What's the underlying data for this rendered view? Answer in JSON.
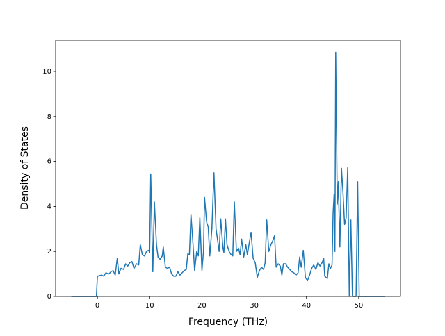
{
  "chart_data": {
    "type": "line",
    "x_label": "Frequency (THz)",
    "y_label": "Density of States",
    "xlim": [
      -8,
      58
    ],
    "ylim": [
      0,
      11.39
    ],
    "xticks": [
      0,
      10,
      20,
      30,
      40,
      50
    ],
    "yticks": [
      0,
      2,
      4,
      6,
      8,
      10
    ],
    "series": [
      {
        "color": "#1f77b4",
        "x": [
          -5,
          -0.2,
          0,
          0.8,
          1.2,
          1.6,
          2.2,
          2.6,
          3.0,
          3.4,
          3.8,
          4.1,
          4.5,
          5.0,
          5.4,
          5.8,
          6.2,
          6.6,
          7.0,
          7.5,
          7.9,
          8.2,
          8.6,
          9.0,
          9.4,
          9.8,
          10.0,
          10.2,
          10.6,
          10.9,
          11.3,
          11.6,
          12.0,
          12.4,
          12.6,
          13.0,
          13.4,
          13.8,
          14.2,
          14.6,
          15.0,
          15.4,
          15.8,
          16.2,
          16.6,
          17.0,
          17.3,
          17.6,
          17.9,
          18.3,
          18.6,
          19.0,
          19.3,
          19.6,
          20.0,
          20.3,
          20.5,
          20.9,
          21.2,
          21.5,
          21.9,
          22.3,
          22.7,
          23.0,
          23.3,
          23.6,
          24.0,
          24.2,
          24.5,
          24.8,
          25.2,
          25.6,
          25.9,
          26.2,
          26.6,
          27.0,
          27.3,
          27.6,
          28.0,
          28.4,
          28.7,
          29.0,
          29.4,
          29.8,
          30.2,
          30.6,
          31.0,
          31.4,
          31.8,
          32.1,
          32.4,
          32.8,
          33.2,
          33.6,
          33.9,
          34.2,
          34.6,
          35.0,
          35.3,
          35.6,
          36.0,
          36.4,
          36.8,
          37.2,
          37.6,
          38.0,
          38.4,
          38.7,
          39.0,
          39.4,
          39.8,
          40.2,
          40.6,
          41.0,
          41.4,
          41.8,
          42.2,
          42.6,
          43.0,
          43.3,
          43.5,
          44.0,
          44.3,
          44.6,
          44.9,
          45.1,
          45.3,
          45.45,
          45.6,
          45.9,
          46.1,
          46.4,
          46.7,
          47.0,
          47.3,
          47.6,
          47.9,
          48.2,
          48.5,
          48.8,
          49.5,
          49.8,
          50.1,
          55
        ],
        "values": [
          0,
          0,
          0.9,
          0.95,
          0.9,
          1.05,
          1.0,
          1.1,
          1.15,
          0.95,
          1.7,
          1.0,
          1.25,
          1.2,
          1.45,
          1.35,
          1.5,
          1.55,
          1.25,
          1.45,
          1.4,
          2.3,
          1.85,
          1.8,
          2.0,
          2.05,
          1.95,
          5.45,
          1.1,
          4.2,
          2.3,
          1.75,
          1.65,
          1.8,
          2.2,
          1.3,
          1.25,
          1.3,
          1.0,
          0.9,
          0.9,
          1.1,
          0.95,
          1.05,
          1.15,
          1.2,
          1.9,
          1.85,
          3.65,
          2.3,
          1.15,
          2.0,
          1.8,
          3.5,
          1.15,
          2.0,
          4.4,
          3.3,
          3.1,
          1.8,
          3.0,
          5.5,
          3.0,
          2.5,
          2.0,
          3.45,
          2.2,
          1.95,
          3.45,
          2.3,
          2.0,
          1.85,
          1.8,
          4.2,
          2.0,
          2.15,
          1.85,
          2.55,
          1.75,
          2.3,
          1.85,
          2.3,
          2.85,
          1.7,
          1.5,
          0.85,
          1.15,
          1.3,
          1.2,
          1.5,
          3.4,
          2.0,
          2.3,
          2.5,
          2.7,
          1.3,
          1.45,
          1.35,
          0.95,
          1.45,
          1.45,
          1.3,
          1.2,
          1.1,
          1.05,
          0.95,
          1.05,
          1.75,
          1.3,
          2.05,
          0.85,
          0.7,
          0.95,
          1.25,
          1.4,
          1.2,
          1.5,
          1.35,
          1.5,
          1.7,
          0.9,
          0.8,
          1.45,
          1.25,
          1.4,
          3.7,
          4.55,
          2.0,
          10.85,
          4.1,
          5.1,
          2.2,
          5.7,
          4.6,
          3.2,
          3.5,
          5.75,
          0,
          3.4,
          0,
          0,
          5.1,
          0,
          0
        ]
      }
    ]
  }
}
